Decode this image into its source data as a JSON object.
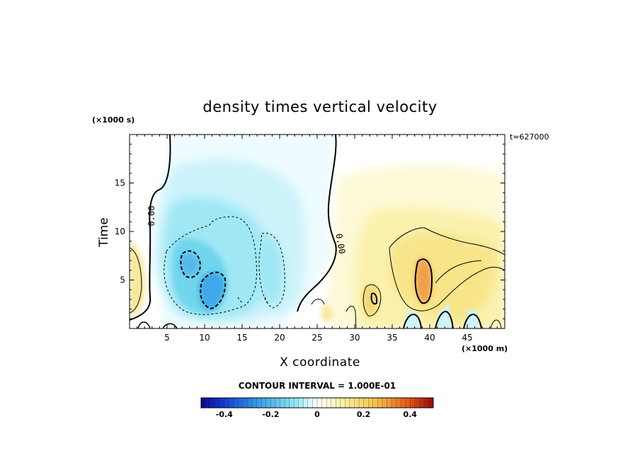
{
  "chart_data": {
    "type": "heatmap",
    "title": "density times vertical velocity",
    "xlabel": "X coordinate",
    "ylabel": "Time",
    "x_units": "(×1000 m)",
    "y_units": "(×1000 s)",
    "time_stamp": "t=627000",
    "xlim": [
      0,
      50
    ],
    "ylim": [
      0,
      20
    ],
    "x_ticks": [
      5,
      10,
      15,
      20,
      25,
      30,
      35,
      40,
      45
    ],
    "y_ticks": [
      5,
      10,
      15
    ],
    "contour_label": "0.00",
    "contour_interval_text": "CONTOUR INTERVAL = 1.000E-01",
    "colorbar": {
      "range": [
        -0.5,
        0.5
      ],
      "ticks": [
        -0.4,
        -0.2,
        0,
        0.2,
        0.4
      ],
      "tick_labels": [
        "-0.4",
        "-0.2",
        "0",
        "0.2",
        "0.4"
      ]
    },
    "features": [
      {
        "kind": "min",
        "x": 10.5,
        "y": 3.0,
        "value": -0.3
      },
      {
        "kind": "min",
        "x": 7.5,
        "y": 6.0,
        "value": -0.2
      },
      {
        "kind": "min",
        "x": 18.0,
        "y": 4.0,
        "value": -0.1
      },
      {
        "kind": "max",
        "x": 39.0,
        "y": 5.0,
        "value": 0.3
      },
      {
        "kind": "max",
        "x": 32.5,
        "y": 3.0,
        "value": 0.15
      },
      {
        "kind": "max",
        "x": 1.0,
        "y": 5.0,
        "value": 0.1
      }
    ]
  }
}
